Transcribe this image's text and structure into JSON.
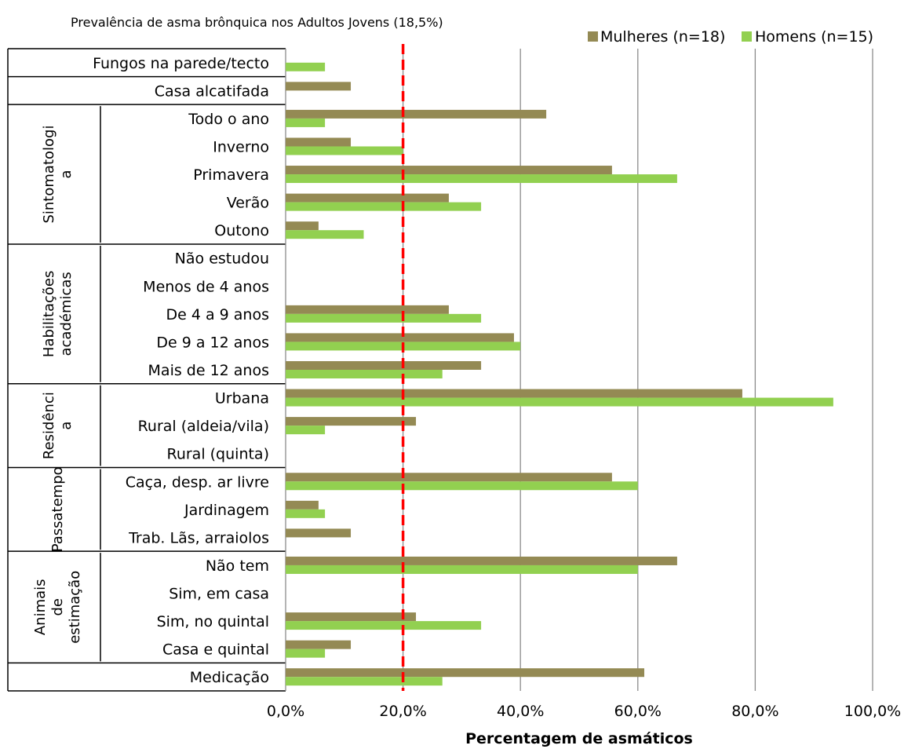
{
  "chart_data": {
    "type": "bar",
    "orientation": "horizontal",
    "title": "Prevalência de asma brônquica nos Adultos Jovens (18,5%)",
    "xlabel": "Percentagem de asmáticos",
    "ylabel": "",
    "xlim": [
      0,
      100
    ],
    "x_ticks": [
      "0,0%",
      "20,0%",
      "40,0%",
      "60,0%",
      "80,0%",
      "100,0%"
    ],
    "grid": "vertical",
    "legend_position": "top-right",
    "reference_line": {
      "value": 20,
      "style": "dashed",
      "color": "#ff0000"
    },
    "categories": [
      "Fungos na parede/tecto",
      "Casa alcatifada",
      "Todo o ano",
      "Inverno",
      "Primavera",
      "Verão",
      "Outono",
      "Não estudou",
      "Menos de 4 anos",
      "De 4 a 9 anos",
      "De 9 a 12 anos",
      "Mais de 12 anos",
      "Urbana",
      "Rural (aldeia/vila)",
      "Rural (quinta)",
      "Caça, desp. ar livre",
      "Jardinagem",
      "Trab. Lãs, arraiolos",
      "Não tem",
      "Sim, em casa",
      "Sim, no quintal",
      "Casa e quintal",
      "Medicação"
    ],
    "groups": [
      {
        "label_lines": [
          "Sintomatologi",
          "a"
        ],
        "start": 2,
        "end": 6
      },
      {
        "label_lines": [
          "Habilitações",
          "académicas"
        ],
        "start": 7,
        "end": 11
      },
      {
        "label_lines": [
          "Residênci",
          "a"
        ],
        "start": 12,
        "end": 14
      },
      {
        "label_lines": [
          "Passatempo"
        ],
        "start": 15,
        "end": 17
      },
      {
        "label_lines": [
          "Animais",
          "de",
          "estimação"
        ],
        "start": 18,
        "end": 21
      }
    ],
    "series": [
      {
        "name": "Mulheres (n=18)",
        "color": "#948a54",
        "values": [
          0,
          11.1,
          44.4,
          11.1,
          55.6,
          27.8,
          5.6,
          0,
          0,
          27.8,
          38.9,
          33.3,
          77.8,
          22.2,
          0,
          55.6,
          5.6,
          11.1,
          66.7,
          0,
          22.2,
          11.1,
          61.1
        ]
      },
      {
        "name": "Homens (n=15)",
        "color": "#92d050",
        "values": [
          6.7,
          0,
          6.7,
          20.0,
          66.7,
          33.3,
          13.3,
          0,
          0,
          33.3,
          40.0,
          26.7,
          93.3,
          6.7,
          0,
          60.0,
          6.7,
          0,
          60.0,
          0,
          33.3,
          6.7,
          26.7
        ]
      }
    ]
  }
}
